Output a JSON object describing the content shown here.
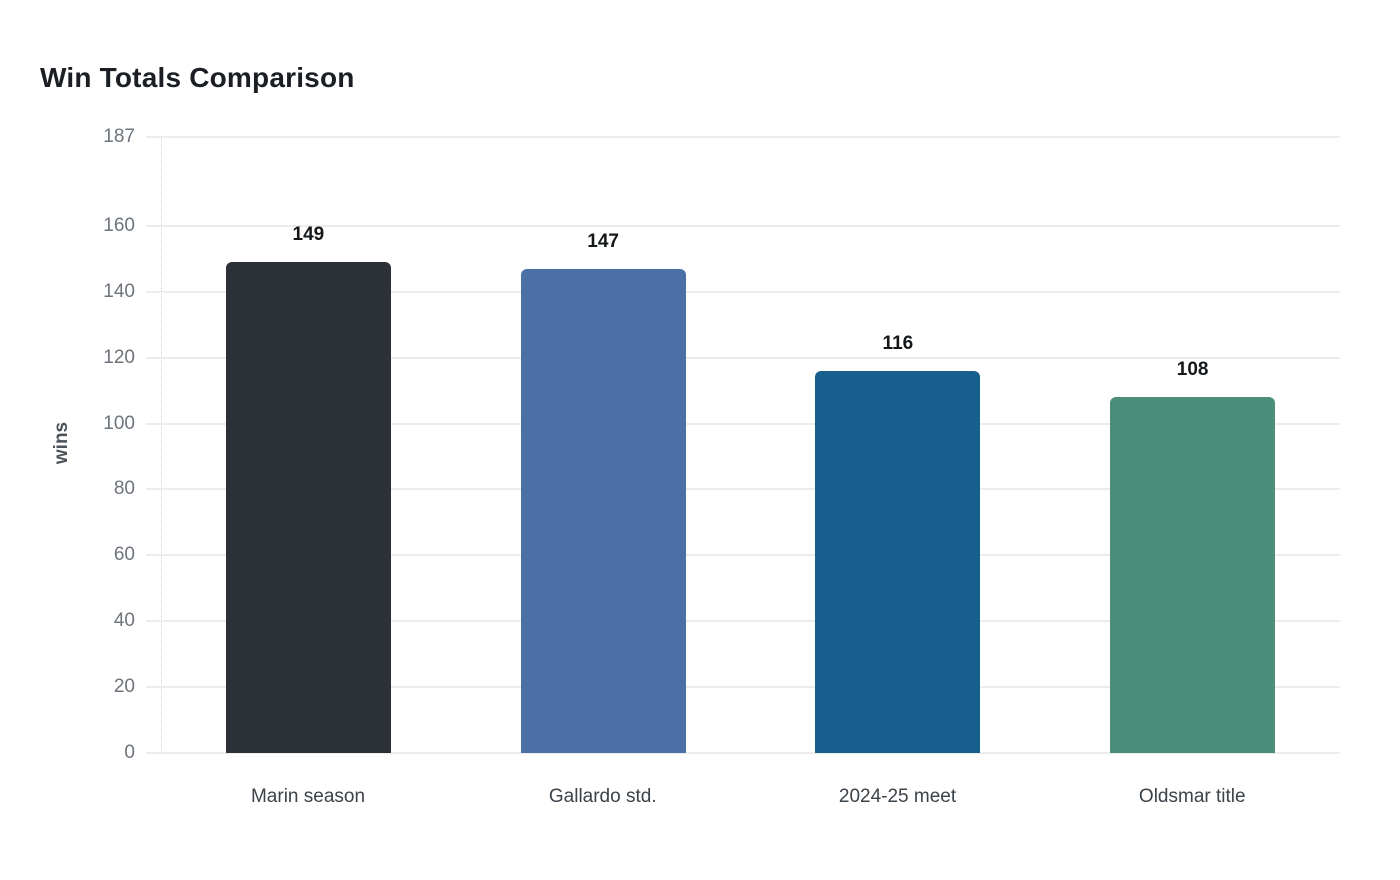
{
  "chart_data": {
    "type": "bar",
    "title": "Win Totals Comparison",
    "xlabel": "",
    "ylabel": "wins",
    "categories": [
      "Marin season",
      "Gallardo std.",
      "2024-25 meet",
      "Oldsmar title"
    ],
    "values": [
      149,
      147,
      116,
      108
    ],
    "value_labels": [
      "149",
      "147",
      "116",
      "108"
    ],
    "bar_colors": [
      "#2b3137",
      "#4b70a6",
      "#175f8c",
      "#4d8e7b"
    ],
    "yticks": [
      0,
      20,
      40,
      60,
      80,
      100,
      120,
      140,
      160,
      187
    ],
    "ylim": [
      0,
      187
    ],
    "grid": true,
    "legend_position": "none",
    "colors": {
      "background": "#ffffff",
      "gridline": "#ececec",
      "axis_dotted_line": "#cfcfcf",
      "y_tick_label": "#6d747b",
      "x_category_label": "#3b4248",
      "value_label": "#15181a",
      "title": "#1b1f23",
      "y_axis_label": "#4b5259"
    }
  }
}
